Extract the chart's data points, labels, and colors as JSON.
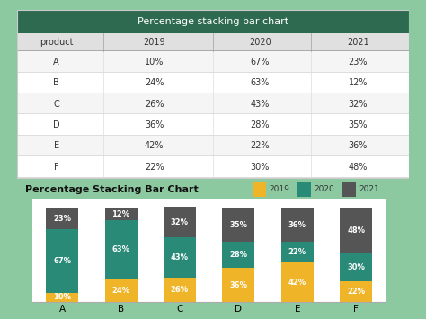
{
  "title_table": "Percentage stacking bar chart",
  "chart_title": "Percentage Stacking Bar Chart",
  "products": [
    "A",
    "B",
    "C",
    "D",
    "E",
    "F"
  ],
  "years": [
    "2019",
    "2020",
    "2021"
  ],
  "values_2019": [
    10,
    24,
    26,
    36,
    42,
    22
  ],
  "values_2020": [
    67,
    63,
    43,
    28,
    22,
    30
  ],
  "values_2021": [
    23,
    12,
    32,
    35,
    36,
    48
  ],
  "color_2019": "#f0b429",
  "color_2020": "#2a8a78",
  "color_2021": "#555555",
  "table_header_bg": "#2d6a4f",
  "table_header_text": "#ffffff",
  "outer_bg": "#8dc9a0",
  "white_card_bg": "#ffffff",
  "subheader_bg": "#e0e0e0",
  "row_bg_even": "#f5f5f5",
  "row_bg_odd": "#ffffff",
  "border_color": "#cccccc",
  "text_dark": "#333333"
}
